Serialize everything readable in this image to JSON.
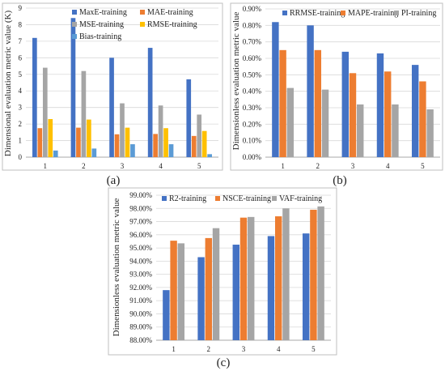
{
  "chart_data": [
    {
      "panel": "(a)",
      "type": "bar",
      "categories": [
        "1",
        "2",
        "3",
        "4",
        "5"
      ],
      "ylabel": "Dimensional evaluation metric value (K)",
      "xlabel": "",
      "ylim": [
        0,
        9
      ],
      "yticks": [
        "0",
        "1",
        "2",
        "3",
        "4",
        "5",
        "6",
        "7",
        "8",
        "9"
      ],
      "grid": true,
      "legend_position": "top-right",
      "series": [
        {
          "name": "MaxE-training",
          "color": "#4472c4",
          "values": [
            7.2,
            8.4,
            6.0,
            6.6,
            4.7
          ]
        },
        {
          "name": "MAE-training",
          "color": "#ed7d31",
          "values": [
            1.75,
            1.78,
            1.38,
            1.4,
            1.28
          ]
        },
        {
          "name": "MSE-training",
          "color": "#a5a5a5",
          "values": [
            5.4,
            5.2,
            3.25,
            3.12,
            2.57
          ]
        },
        {
          "name": "RMSE-training",
          "color": "#ffc000",
          "values": [
            2.3,
            2.27,
            1.78,
            1.75,
            1.58
          ]
        },
        {
          "name": "Bias-training",
          "color": "#5b9bd5",
          "values": [
            0.4,
            0.52,
            0.78,
            0.78,
            0.18
          ]
        }
      ]
    },
    {
      "panel": "(b)",
      "type": "bar",
      "categories": [
        "1",
        "2",
        "3",
        "4",
        "5"
      ],
      "ylabel": "Dimensionless evaluation metric value",
      "xlabel": "",
      "ylim": [
        0,
        0.9
      ],
      "yticks": [
        "0.00%",
        "0.10%",
        "0.20%",
        "0.30%",
        "0.40%",
        "0.50%",
        "0.60%",
        "0.70%",
        "0.80%",
        "0.90%"
      ],
      "grid": true,
      "legend_position": "top",
      "series": [
        {
          "name": "RRMSE-training",
          "color": "#4472c4",
          "values": [
            0.82,
            0.8,
            0.64,
            0.63,
            0.56
          ]
        },
        {
          "name": "MAPE-training",
          "color": "#ed7d31",
          "values": [
            0.65,
            0.65,
            0.51,
            0.52,
            0.46
          ]
        },
        {
          "name": "PI-training",
          "color": "#a5a5a5",
          "values": [
            0.42,
            0.41,
            0.32,
            0.32,
            0.29
          ]
        }
      ]
    },
    {
      "panel": "(c)",
      "type": "bar",
      "categories": [
        "1",
        "2",
        "3",
        "4",
        "5"
      ],
      "ylabel": "Dimensionless evaluation metric value",
      "xlabel": "",
      "ylim": [
        88,
        99
      ],
      "yticks": [
        "88.00%",
        "89.00%",
        "90.00%",
        "91.00%",
        "92.00%",
        "93.00%",
        "94.00%",
        "95.00%",
        "96.00%",
        "97.00%",
        "98.00%",
        "99.00%"
      ],
      "grid": true,
      "legend_position": "top",
      "series": [
        {
          "name": "R2-training",
          "color": "#4472c4",
          "values": [
            91.8,
            94.3,
            95.25,
            95.9,
            96.1
          ]
        },
        {
          "name": "NSCE-training",
          "color": "#ed7d31",
          "values": [
            95.55,
            95.75,
            97.3,
            97.4,
            97.9
          ]
        },
        {
          "name": "VAF-training",
          "color": "#a5a5a5",
          "values": [
            95.35,
            96.5,
            97.35,
            98.0,
            98.15
          ]
        }
      ]
    }
  ]
}
